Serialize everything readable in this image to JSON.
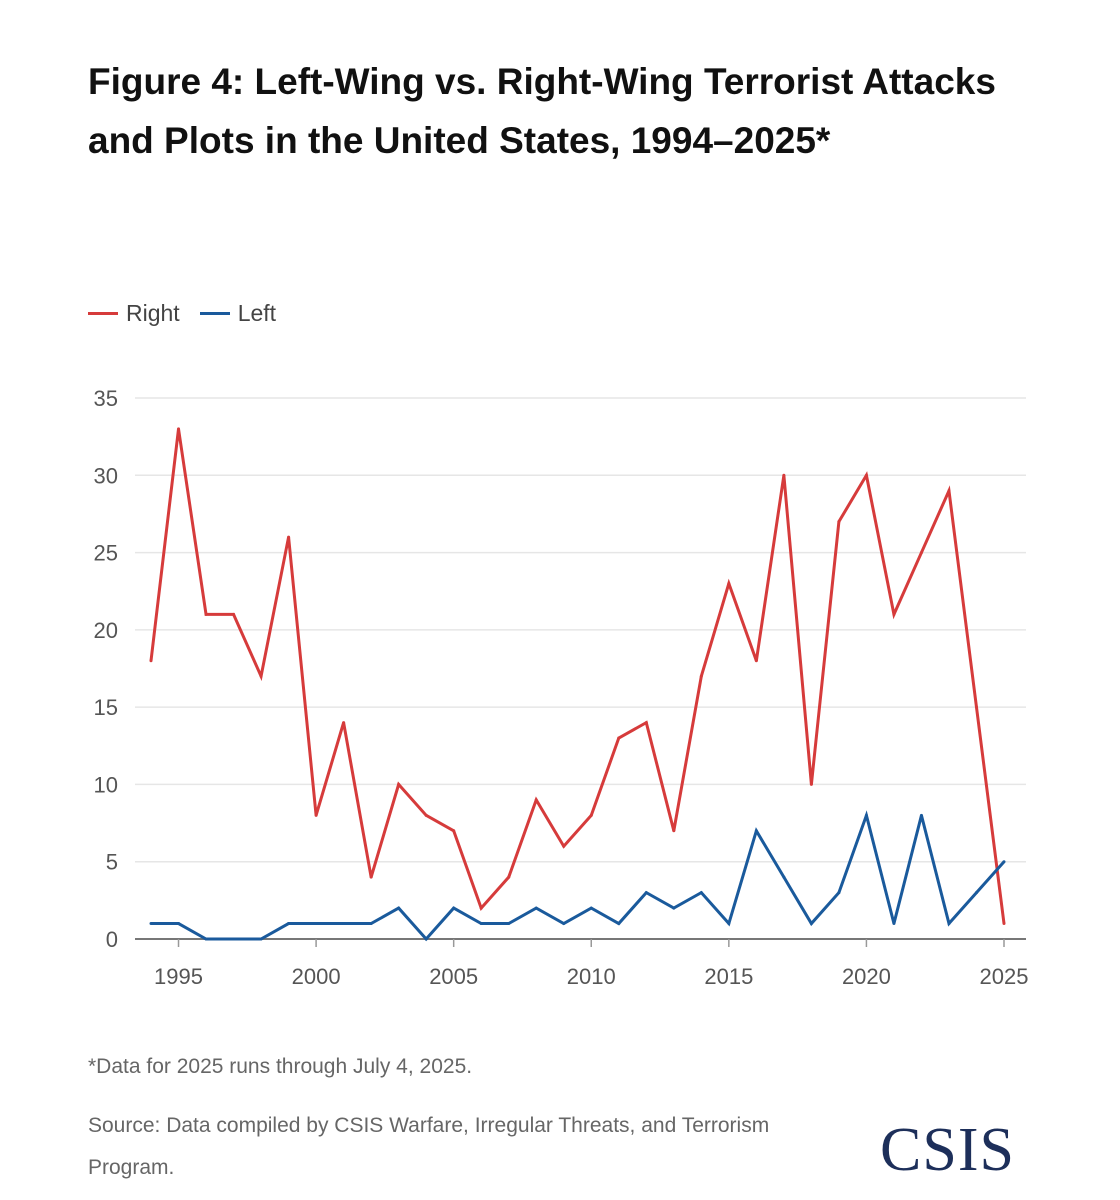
{
  "chart_data": {
    "type": "line",
    "title": "Figure 4: Left-Wing vs. Right-Wing Terrorist Attacks and Plots in the United States, 1994–2025*",
    "x": [
      1994,
      1995,
      1996,
      1997,
      1998,
      1999,
      2000,
      2001,
      2002,
      2003,
      2004,
      2005,
      2006,
      2007,
      2008,
      2009,
      2010,
      2011,
      2012,
      2013,
      2014,
      2015,
      2016,
      2017,
      2018,
      2019,
      2020,
      2021,
      2022,
      2023,
      2024,
      2025
    ],
    "series": [
      {
        "name": "Right",
        "color": "#d63b3b",
        "values": [
          18,
          33,
          21,
          21,
          17,
          26,
          8,
          14,
          4,
          10,
          8,
          7,
          2,
          4,
          9,
          6,
          8,
          13,
          14,
          7,
          17,
          23,
          18,
          30,
          10,
          27,
          30,
          21,
          25,
          29,
          15,
          1
        ]
      },
      {
        "name": "Left",
        "color": "#1a5a9c",
        "values": [
          1,
          1,
          0,
          0,
          0,
          1,
          1,
          1,
          1,
          2,
          0,
          2,
          1,
          1,
          2,
          1,
          2,
          1,
          3,
          2,
          3,
          1,
          7,
          4,
          1,
          3,
          8,
          1,
          8,
          1,
          3,
          5
        ]
      }
    ],
    "xticks": [
      1995,
      2000,
      2005,
      2010,
      2015,
      2020,
      2025
    ],
    "yticks": [
      0,
      5,
      10,
      15,
      20,
      25,
      30,
      35
    ],
    "xlim": [
      1994,
      2025
    ],
    "ylim": [
      0,
      35
    ],
    "grid": "horizontal",
    "legend_placement": "top-left",
    "xlabel": "",
    "ylabel": ""
  },
  "footnote": "*Data for 2025 runs through July 4, 2025.",
  "source": "Source: Data compiled by CSIS Warfare, Irregular Threats, and Terrorism Program.",
  "logo": "CSIS"
}
